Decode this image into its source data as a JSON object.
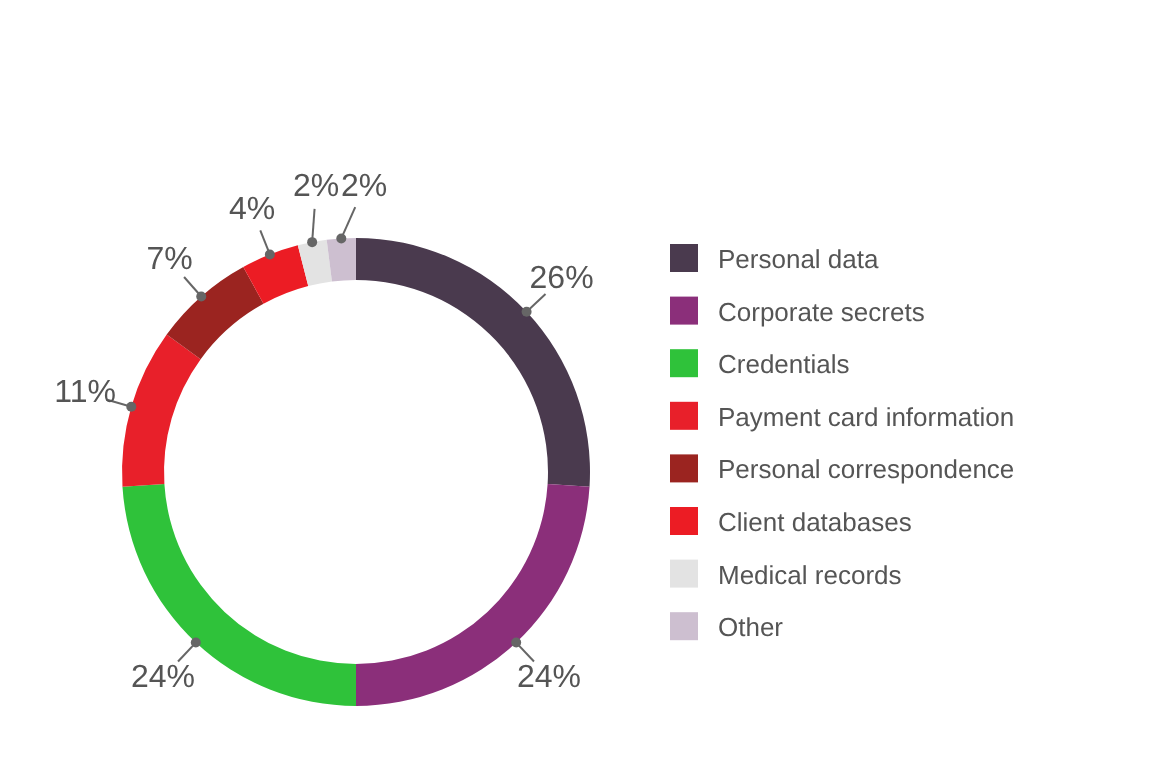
{
  "chart_data": {
    "type": "donut",
    "categories": [
      "Personal data",
      "Corporate secrets",
      "Credentials",
      "Payment card information",
      "Personal correspondence",
      "Client databases",
      "Medical records",
      "Other"
    ],
    "values": [
      26,
      24,
      24,
      11,
      7,
      4,
      2,
      2
    ],
    "value_labels": [
      "26%",
      "24%",
      "24%",
      "11%",
      "7%",
      "4%",
      "2%",
      "2%"
    ],
    "colors": [
      "#4a3a4e",
      "#8b2f7a",
      "#2fc23a",
      "#e8202a",
      "#9b2420",
      "#ec1c24",
      "#e3e3e3",
      "#cdbfd0"
    ],
    "legend": "right"
  }
}
